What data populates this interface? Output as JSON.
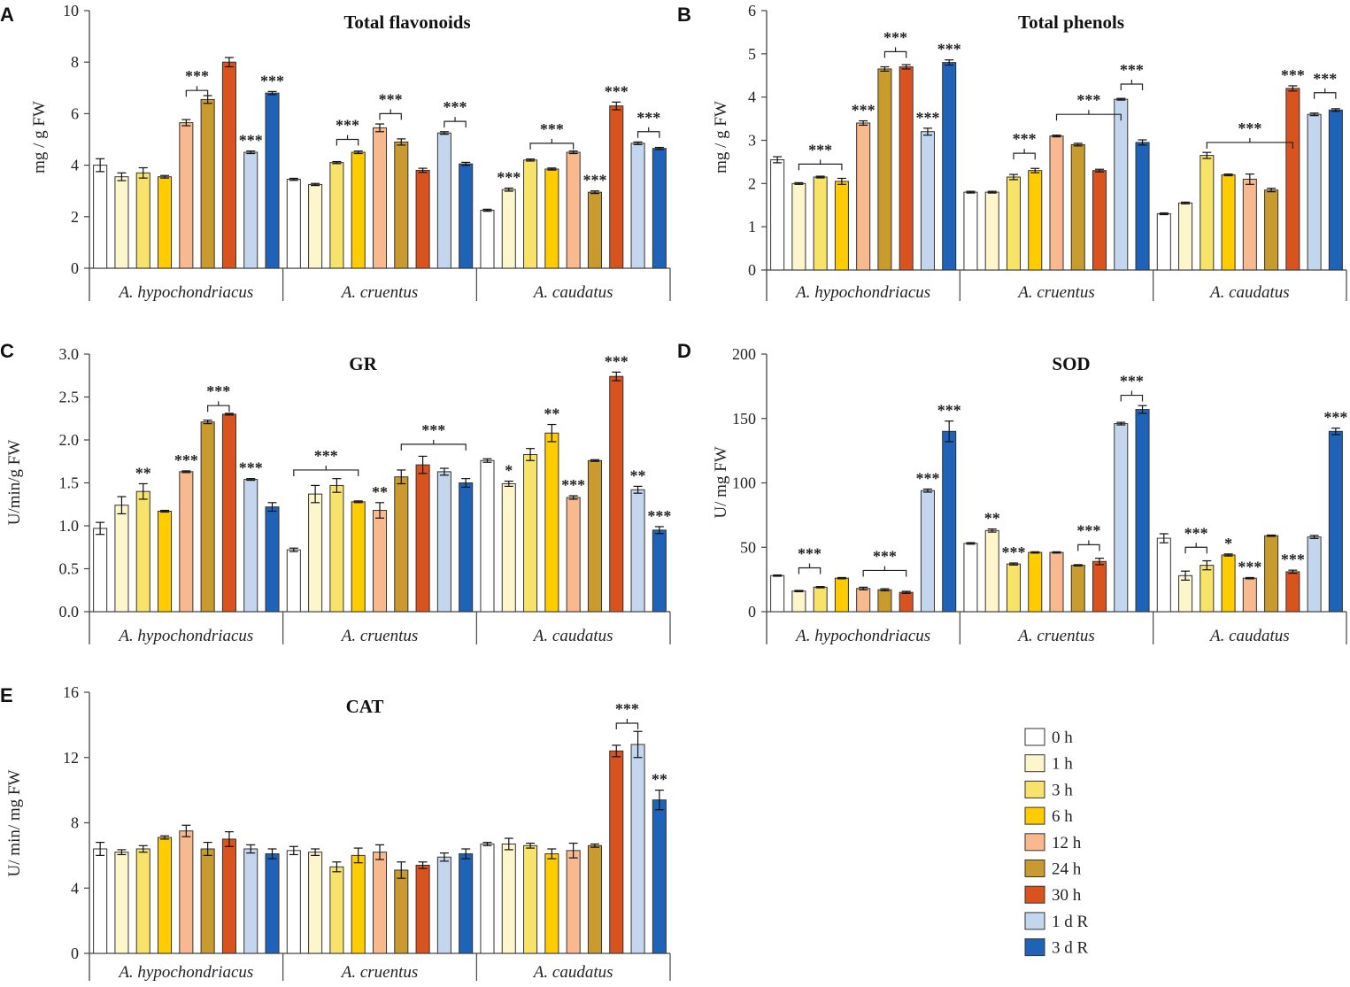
{
  "figure": {
    "legend": [
      {
        "label": "0 h",
        "color": "#ffffff"
      },
      {
        "label": "1 h",
        "color": "#fdf6cc"
      },
      {
        "label": "3 h",
        "color": "#f7e36a"
      },
      {
        "label": "6 h",
        "color": "#ffcc00"
      },
      {
        "label": "12 h",
        "color": "#f9b98e"
      },
      {
        "label": "24 h",
        "color": "#c99a2e"
      },
      {
        "label": "30 h",
        "color": "#d9531e"
      },
      {
        "label": "1 d R",
        "color": "#c4d6ee"
      },
      {
        "label": "3 d R",
        "color": "#1f63b8"
      }
    ]
  },
  "chart_data": [
    {
      "panel": "A",
      "type": "bar",
      "title": "Total flavonoids",
      "ylabel": "mg / g FW",
      "ylim": [
        0,
        10
      ],
      "yticks": [
        0,
        2,
        4,
        6,
        8,
        10
      ],
      "groups": [
        "A. hypochondriacus",
        "A. cruentus",
        "A. caudatus"
      ],
      "series": [
        "0 h",
        "1 h",
        "3 h",
        "6 h",
        "12 h",
        "24 h",
        "30 h",
        "1 d R",
        "3 d R"
      ],
      "values": [
        [
          4.0,
          3.55,
          3.7,
          3.55,
          5.65,
          6.55,
          8.0,
          4.5,
          6.8
        ],
        [
          3.45,
          3.25,
          4.1,
          4.5,
          5.45,
          4.9,
          3.8,
          5.25,
          4.05
        ],
        [
          2.25,
          3.05,
          4.2,
          3.85,
          4.5,
          2.95,
          6.3,
          4.85,
          4.65
        ]
      ],
      "errors": [
        [
          0.25,
          0.15,
          0.2,
          0.05,
          0.12,
          0.15,
          0.18,
          0.05,
          0.06
        ],
        [
          0.04,
          0.04,
          0.04,
          0.05,
          0.15,
          0.12,
          0.08,
          0.05,
          0.06
        ],
        [
          0.04,
          0.06,
          0.04,
          0.04,
          0.05,
          0.05,
          0.15,
          0.05,
          0.04
        ]
      ],
      "annotations": [
        {
          "text": "***",
          "bar": [
            0,
            7
          ]
        },
        {
          "text": "***",
          "bracket": [
            0,
            4,
            0,
            5
          ],
          "y": 6.9
        },
        {
          "text": "***",
          "bar": [
            0,
            8
          ]
        },
        {
          "text": "***",
          "bracket": [
            1,
            2,
            1,
            3
          ],
          "y": 5.0
        },
        {
          "text": "***",
          "bracket": [
            1,
            4,
            1,
            5
          ],
          "y": 6.0
        },
        {
          "text": "***",
          "bracket": [
            1,
            7,
            1,
            8
          ],
          "y": 5.7
        },
        {
          "text": "***",
          "bar": [
            2,
            1
          ]
        },
        {
          "text": "***",
          "bracket": [
            2,
            2,
            2,
            4
          ],
          "y": 4.85
        },
        {
          "text": "***",
          "bar": [
            2,
            5
          ]
        },
        {
          "text": "***",
          "bar": [
            2,
            6
          ]
        },
        {
          "text": "***",
          "bracket": [
            2,
            7,
            2,
            8
          ],
          "y": 5.3
        }
      ]
    },
    {
      "panel": "B",
      "type": "bar",
      "title": "Total phenols",
      "ylabel": "mg / g FW",
      "ylim": [
        0,
        6
      ],
      "yticks": [
        0,
        1,
        2,
        3,
        4,
        5,
        6
      ],
      "groups": [
        "A. hypochondriacus",
        "A. cruentus",
        "A. caudatus"
      ],
      "series": [
        "0 h",
        "1 h",
        "3 h",
        "6 h",
        "12 h",
        "24 h",
        "30 h",
        "1 d R",
        "3 d R"
      ],
      "values": [
        [
          2.55,
          2.0,
          2.15,
          2.05,
          3.4,
          4.65,
          4.7,
          3.2,
          4.8
        ],
        [
          1.8,
          1.8,
          2.15,
          2.3,
          3.1,
          2.9,
          2.3,
          3.95,
          2.95
        ],
        [
          1.3,
          1.55,
          2.65,
          2.2,
          2.1,
          1.85,
          4.2,
          3.6,
          3.7
        ]
      ],
      "errors": [
        [
          0.07,
          0.02,
          0.02,
          0.07,
          0.05,
          0.05,
          0.05,
          0.08,
          0.06
        ],
        [
          0.02,
          0.02,
          0.06,
          0.05,
          0.02,
          0.03,
          0.03,
          0.02,
          0.06
        ],
        [
          0.02,
          0.02,
          0.07,
          0.02,
          0.12,
          0.04,
          0.06,
          0.03,
          0.03
        ]
      ],
      "annotations": [
        {
          "text": "***",
          "bracket": [
            0,
            1,
            0,
            3
          ],
          "y": 2.45
        },
        {
          "text": "***",
          "bar": [
            0,
            4
          ]
        },
        {
          "text": "***",
          "bracket": [
            0,
            5,
            0,
            6
          ],
          "y": 5.05
        },
        {
          "text": "***",
          "bar": [
            0,
            7
          ]
        },
        {
          "text": "***",
          "bar": [
            0,
            8
          ]
        },
        {
          "text": "***",
          "bracket": [
            1,
            2,
            1,
            3
          ],
          "y": 2.7
        },
        {
          "text": "***",
          "bracket": [
            1,
            4,
            1,
            7
          ],
          "y": 3.6
        },
        {
          "text": "***",
          "bracket": [
            1,
            7,
            1,
            8
          ],
          "y": 4.3
        },
        {
          "text": "***",
          "bracket": [
            2,
            2,
            2,
            6
          ],
          "y": 2.95
        },
        {
          "text": "***",
          "bar": [
            2,
            6
          ]
        },
        {
          "text": "***",
          "bracket": [
            2,
            7,
            2,
            8
          ],
          "y": 4.1
        }
      ]
    },
    {
      "panel": "C",
      "type": "bar",
      "title": "GR",
      "ylabel": "U/min/g FW",
      "ylim": [
        0,
        3
      ],
      "yticks": [
        "0.0",
        "0.5",
        "1.0",
        "1.5",
        "2.0",
        "2.5",
        "3.0"
      ],
      "groups": [
        "A. hypochondriacus",
        "A. cruentus",
        "A. caudatus"
      ],
      "series": [
        "0 h",
        "1 h",
        "3 h",
        "6 h",
        "12 h",
        "24 h",
        "30 h",
        "1 d R",
        "3 d R"
      ],
      "values": [
        [
          0.97,
          1.24,
          1.4,
          1.17,
          1.63,
          2.21,
          2.3,
          1.54,
          1.22
        ],
        [
          0.72,
          1.37,
          1.47,
          1.28,
          1.18,
          1.57,
          1.71,
          1.63,
          1.5
        ],
        [
          1.76,
          1.49,
          1.83,
          2.08,
          1.33,
          1.76,
          2.74,
          1.42,
          0.95
        ]
      ],
      "errors": [
        [
          0.07,
          0.1,
          0.09,
          0.01,
          0.01,
          0.02,
          0.01,
          0.01,
          0.05
        ],
        [
          0.02,
          0.1,
          0.08,
          0.01,
          0.09,
          0.08,
          0.1,
          0.04,
          0.05
        ],
        [
          0.02,
          0.03,
          0.07,
          0.1,
          0.02,
          0.01,
          0.05,
          0.04,
          0.04
        ]
      ],
      "annotations": [
        {
          "text": "**",
          "bar": [
            0,
            2
          ]
        },
        {
          "text": "***",
          "bar": [
            0,
            4
          ]
        },
        {
          "text": "***",
          "bracket": [
            0,
            5,
            0,
            6
          ],
          "y": 2.4
        },
        {
          "text": "***",
          "bar": [
            0,
            7
          ]
        },
        {
          "text": "***",
          "bracket": [
            1,
            0,
            1,
            3
          ],
          "y": 1.65
        },
        {
          "text": "**",
          "bar": [
            1,
            4
          ]
        },
        {
          "text": "***",
          "bracket": [
            1,
            5,
            1,
            8
          ],
          "y": 1.95
        },
        {
          "text": "*",
          "bar": [
            2,
            1
          ]
        },
        {
          "text": "**",
          "bar": [
            2,
            3
          ]
        },
        {
          "text": "***",
          "bar": [
            2,
            4
          ]
        },
        {
          "text": "***",
          "bar": [
            2,
            6
          ]
        },
        {
          "text": "**",
          "bar": [
            2,
            7
          ]
        },
        {
          "text": "***",
          "bar": [
            2,
            8
          ]
        }
      ]
    },
    {
      "panel": "D",
      "type": "bar",
      "title": "SOD",
      "ylabel": "U/ mg FW",
      "ylim": [
        0,
        200
      ],
      "yticks": [
        0,
        50,
        100,
        150,
        200
      ],
      "groups": [
        "A. hypochondriacus",
        "A. cruentus",
        "A. caudatus"
      ],
      "series": [
        "0 h",
        "1 h",
        "3 h",
        "6 h",
        "12 h",
        "24 h",
        "30 h",
        "1 d R",
        "3 d R"
      ],
      "values": [
        [
          28,
          16,
          19,
          26,
          18,
          17,
          15,
          94,
          140
        ],
        [
          53,
          63,
          37,
          46,
          46,
          36,
          39,
          146,
          157
        ],
        [
          57,
          28,
          36,
          44,
          26,
          59,
          31,
          58,
          140
        ]
      ],
      "errors": [
        [
          0.5,
          0.5,
          0.5,
          0.5,
          1.0,
          0.8,
          0.8,
          1.2,
          8.0
        ],
        [
          0.6,
          1.2,
          0.8,
          0.5,
          0.5,
          0.5,
          2.5,
          1.0,
          3.0
        ],
        [
          3.5,
          3.5,
          3.5,
          0.8,
          0.5,
          0.5,
          1.2,
          1.2,
          2.5
        ]
      ],
      "annotations": [
        {
          "text": "***",
          "bracket": [
            0,
            1,
            0,
            2
          ],
          "y": 34
        },
        {
          "text": "***",
          "bracket": [
            0,
            4,
            0,
            6
          ],
          "y": 32
        },
        {
          "text": "***",
          "bar": [
            0,
            7
          ]
        },
        {
          "text": "***",
          "bar": [
            0,
            8
          ]
        },
        {
          "text": "**",
          "bar": [
            1,
            1
          ]
        },
        {
          "text": "***",
          "bar": [
            1,
            2
          ]
        },
        {
          "text": "***",
          "bracket": [
            1,
            5,
            1,
            6
          ],
          "y": 52
        },
        {
          "text": "***",
          "bracket": [
            1,
            7,
            1,
            8
          ],
          "y": 168
        },
        {
          "text": "***",
          "bracket": [
            2,
            1,
            2,
            2
          ],
          "y": 50
        },
        {
          "text": "*",
          "bar": [
            2,
            3
          ]
        },
        {
          "text": "***",
          "bar": [
            2,
            4
          ]
        },
        {
          "text": "***",
          "bar": [
            2,
            6
          ]
        },
        {
          "text": "***",
          "bar": [
            2,
            8
          ]
        }
      ]
    },
    {
      "panel": "E",
      "type": "bar",
      "title": "CAT",
      "ylabel": "U/ min/ mg FW",
      "ylim": [
        0,
        16
      ],
      "yticks": [
        0,
        4,
        8,
        12,
        16
      ],
      "groups": [
        "A. hypochondriacus",
        "A. cruentus",
        "A. caudatus"
      ],
      "series": [
        "0 h",
        "1 h",
        "3 h",
        "6 h",
        "12 h",
        "24 h",
        "30 h",
        "1 d R",
        "3 d R"
      ],
      "values": [
        [
          6.4,
          6.2,
          6.4,
          7.1,
          7.5,
          6.4,
          7.0,
          6.4,
          6.1
        ],
        [
          6.3,
          6.2,
          5.3,
          6.0,
          6.2,
          5.1,
          5.4,
          5.9,
          6.1
        ],
        [
          6.7,
          6.7,
          6.6,
          6.1,
          6.3,
          6.6,
          12.4,
          12.8,
          9.4
        ]
      ],
      "errors": [
        [
          0.4,
          0.15,
          0.2,
          0.1,
          0.35,
          0.4,
          0.45,
          0.25,
          0.3
        ],
        [
          0.25,
          0.2,
          0.3,
          0.45,
          0.45,
          0.5,
          0.2,
          0.25,
          0.3
        ],
        [
          0.1,
          0.35,
          0.15,
          0.3,
          0.45,
          0.1,
          0.35,
          0.8,
          0.6
        ]
      ],
      "annotations": [
        {
          "text": "***",
          "bracket": [
            2,
            6,
            2,
            7
          ],
          "y": 14.1
        },
        {
          "text": "**",
          "bar": [
            2,
            8
          ]
        }
      ]
    }
  ]
}
